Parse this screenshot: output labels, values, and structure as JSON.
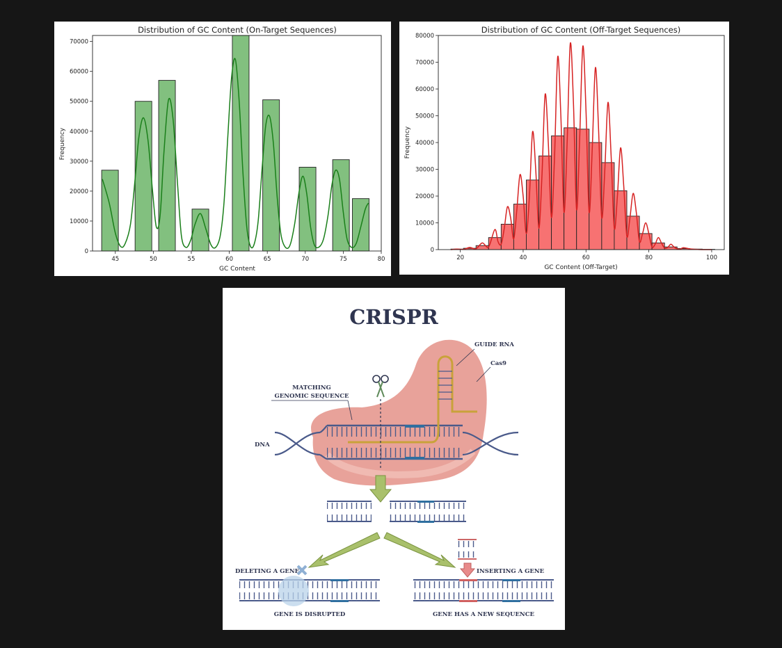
{
  "colors": {
    "background": "#161616",
    "green_fill": "#82c07f",
    "green_line": "#1a7f1a",
    "red_fill": "#f77272",
    "red_line": "#d62222",
    "crispr_navy": "#2f3550",
    "cas9_fill": "#e8a29a"
  },
  "chart_data": [
    {
      "type": "bar",
      "title": "Distribution of GC Content (On-Target Sequences)",
      "xlabel": "GC Content",
      "ylabel": "Frequency",
      "xlim": [
        42,
        80
      ],
      "ylim": [
        0,
        72000
      ],
      "xticks": [
        45,
        50,
        55,
        60,
        65,
        70,
        75,
        80
      ],
      "yticks": [
        0,
        10000,
        20000,
        30000,
        40000,
        50000,
        60000,
        70000
      ],
      "bars": [
        {
          "x0": 43.2,
          "x1": 45.4,
          "value": 27000
        },
        {
          "x0": 47.6,
          "x1": 49.8,
          "value": 50000
        },
        {
          "x0": 50.7,
          "x1": 52.9,
          "value": 57000
        },
        {
          "x0": 55.1,
          "x1": 57.3,
          "value": 14000
        },
        {
          "x0": 60.4,
          "x1": 62.6,
          "value": 72000
        },
        {
          "x0": 64.4,
          "x1": 66.6,
          "value": 50500
        },
        {
          "x0": 69.2,
          "x1": 71.4,
          "value": 28000
        },
        {
          "x0": 73.6,
          "x1": 75.8,
          "value": 30500
        },
        {
          "x0": 76.2,
          "x1": 78.4,
          "value": 17500
        }
      ],
      "kde": {
        "x": [
          43.3,
          44.2,
          45.0,
          45.7,
          46.3,
          47.0,
          47.6,
          48.1,
          48.7,
          49.3,
          49.9,
          50.4,
          50.9,
          51.4,
          52.0,
          52.6,
          53.2,
          53.7,
          54.3,
          54.9,
          55.5,
          56.2,
          56.9,
          57.6,
          58.2,
          58.8,
          59.3,
          59.8,
          60.3,
          60.8,
          61.3,
          61.8,
          62.3,
          62.8,
          63.3,
          63.8,
          64.3,
          64.8,
          65.3,
          65.8,
          66.3,
          66.8,
          67.4,
          68.0,
          68.6,
          69.2,
          69.7,
          70.2,
          70.7,
          71.2,
          71.8,
          72.4,
          73.0,
          73.5,
          74.0,
          74.5,
          75.0,
          75.5,
          76.1,
          76.7,
          77.3,
          77.9,
          78.3
        ],
        "y": [
          24000,
          16000,
          6000,
          1500,
          2500,
          9000,
          24000,
          38000,
          44500,
          37000,
          20000,
          8000,
          12000,
          33000,
          50500,
          44000,
          22000,
          5000,
          1200,
          3500,
          9000,
          12500,
          7500,
          2000,
          1200,
          5000,
          16000,
          38000,
          58000,
          64000,
          50000,
          26000,
          8000,
          1500,
          2500,
          10000,
          27000,
          42000,
          45000,
          36000,
          18000,
          5500,
          1200,
          2000,
          9000,
          20000,
          25000,
          19000,
          8000,
          2000,
          1300,
          4000,
          12000,
          22000,
          27000,
          24000,
          13000,
          4000,
          1200,
          2500,
          8000,
          14000,
          16000
        ]
      }
    },
    {
      "type": "bar",
      "title": "Distribution of GC Content (Off-Target Sequences)",
      "xlabel": "GC Content (Off-Target)",
      "ylabel": "Frequency",
      "xlim": [
        13,
        104
      ],
      "ylim": [
        0,
        80000
      ],
      "xticks": [
        20,
        40,
        60,
        80,
        100
      ],
      "yticks": [
        0,
        10000,
        20000,
        30000,
        40000,
        50000,
        60000,
        70000,
        80000
      ],
      "bars": [
        {
          "x0": 17,
          "x1": 21,
          "value": 200
        },
        {
          "x0": 21,
          "x1": 25,
          "value": 500
        },
        {
          "x0": 25,
          "x1": 29,
          "value": 1500
        },
        {
          "x0": 29,
          "x1": 33,
          "value": 4500
        },
        {
          "x0": 33,
          "x1": 37,
          "value": 9500
        },
        {
          "x0": 37,
          "x1": 41,
          "value": 17000
        },
        {
          "x0": 41,
          "x1": 45,
          "value": 26000
        },
        {
          "x0": 45,
          "x1": 49,
          "value": 35000
        },
        {
          "x0": 49,
          "x1": 53,
          "value": 42500
        },
        {
          "x0": 53,
          "x1": 57,
          "value": 45500
        },
        {
          "x0": 57,
          "x1": 61,
          "value": 45000
        },
        {
          "x0": 61,
          "x1": 65,
          "value": 40000
        },
        {
          "x0": 65,
          "x1": 69,
          "value": 32500
        },
        {
          "x0": 69,
          "x1": 73,
          "value": 22000
        },
        {
          "x0": 73,
          "x1": 77,
          "value": 12500
        },
        {
          "x0": 77,
          "x1": 81,
          "value": 6000
        },
        {
          "x0": 81,
          "x1": 85,
          "value": 2500
        },
        {
          "x0": 85,
          "x1": 89,
          "value": 1000
        },
        {
          "x0": 89,
          "x1": 93,
          "value": 400
        },
        {
          "x0": 93,
          "x1": 97,
          "value": 200
        },
        {
          "x0": 97,
          "x1": 101,
          "value": 100
        }
      ],
      "kde": {
        "x": [
          17,
          19,
          21,
          23,
          25,
          27,
          29,
          31,
          32,
          33,
          34,
          35,
          36,
          37,
          38,
          39,
          40,
          41,
          42,
          43,
          44,
          45,
          46,
          47,
          48,
          49,
          50,
          51,
          52,
          53,
          54,
          55,
          56,
          57,
          58,
          59,
          60,
          61,
          62,
          63,
          64,
          65,
          66,
          67,
          68,
          69,
          70,
          71,
          72,
          73,
          74,
          75,
          76,
          77,
          78,
          79,
          80,
          81,
          82,
          83,
          84,
          85,
          86,
          87,
          88,
          89,
          90,
          91,
          93,
          95,
          97,
          100
        ],
        "y": [
          0,
          200,
          100,
          800,
          300,
          2500,
          1000,
          7500,
          3000,
          2000,
          8000,
          16000,
          12000,
          4000,
          15000,
          28000,
          20000,
          6000,
          20000,
          44000,
          30000,
          8000,
          28000,
          58000,
          40000,
          12000,
          35000,
          72000,
          50000,
          14000,
          40000,
          77000,
          55000,
          15000,
          42000,
          76000,
          52000,
          14000,
          38000,
          68000,
          45000,
          12000,
          30000,
          55000,
          35000,
          8000,
          20000,
          38000,
          24000,
          5000,
          12000,
          21000,
          14000,
          3000,
          6000,
          10000,
          6000,
          1000,
          2000,
          4500,
          2500,
          600,
          800,
          2000,
          1000,
          300,
          200,
          700,
          300,
          100,
          0,
          0
        ]
      }
    }
  ],
  "crispr": {
    "title": "CRISPR",
    "labels": {
      "guide_rna": "GUIDE RNA",
      "cas9": "Cas9",
      "matching_1": "MATCHING",
      "matching_2": "GENOMIC SEQUENCE",
      "dna": "DNA",
      "deleting": "DELETING A GENE",
      "inserting": "INSERTING A GENE",
      "disrupted": "GENE IS DISRUPTED",
      "new_sequence": "GENE HAS A NEW SEQUENCE"
    },
    "icons": [
      "scissors-icon",
      "delete-x-icon",
      "down-arrow-icon"
    ]
  }
}
